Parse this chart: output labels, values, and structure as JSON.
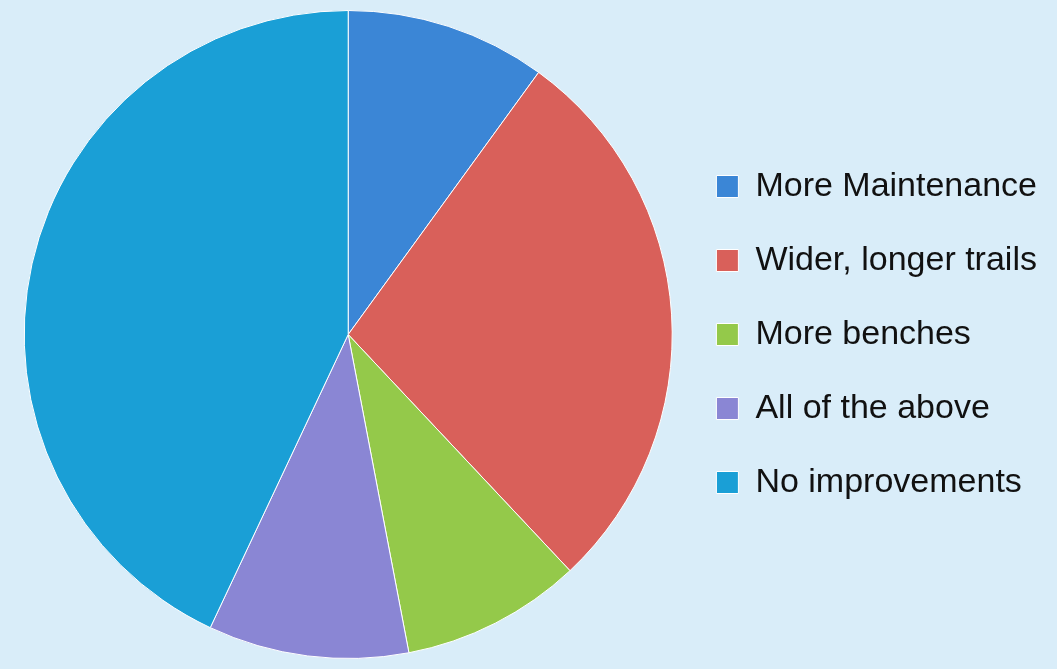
{
  "chart_data": {
    "type": "pie",
    "categories": [
      "More Maintenance",
      "Wider, longer trails",
      "More benches",
      "All of the above",
      "No improvements"
    ],
    "values": [
      10,
      28,
      9,
      10,
      43
    ],
    "colors": [
      "#3b86d6",
      "#d9605a",
      "#94c94a",
      "#8a86d4",
      "#1a9fd6"
    ],
    "legend": "right"
  }
}
